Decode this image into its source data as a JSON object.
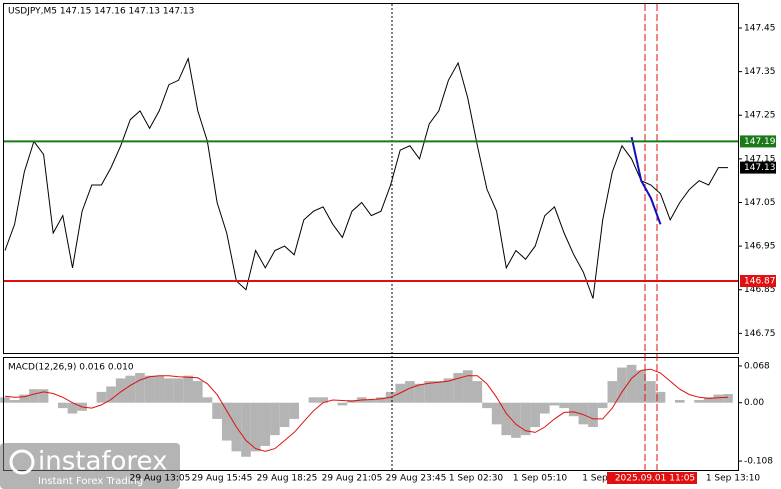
{
  "chart_data": [
    {
      "type": "line",
      "title": "USDJPY,M5  147.15 147.16 147.13 147.13",
      "series": [
        {
          "color": "#000000",
          "values": [
            146.94,
            147.0,
            147.12,
            147.19,
            147.16,
            146.98,
            147.02,
            146.9,
            147.03,
            147.09,
            147.09,
            147.13,
            147.18,
            147.24,
            147.26,
            147.22,
            147.26,
            147.32,
            147.33,
            147.38,
            147.26,
            147.19,
            147.05,
            146.98,
            146.87,
            146.85,
            146.94,
            146.9,
            146.94,
            146.95,
            146.93,
            147.01,
            147.03,
            147.04,
            147.0,
            146.97,
            147.03,
            147.05,
            147.02,
            147.03,
            147.09,
            147.17,
            147.18,
            147.15,
            147.23,
            147.26,
            147.33,
            147.37,
            147.29,
            147.18,
            147.08,
            147.03,
            146.9,
            146.94,
            146.92,
            146.95,
            147.02,
            147.04,
            146.98,
            146.93,
            146.89,
            146.83,
            147.01,
            147.12,
            147.18,
            147.15,
            147.1,
            147.09,
            147.07,
            147.01,
            147.05,
            147.08,
            147.1,
            147.09,
            147.13,
            147.13
          ]
        },
        {
          "color": "#1010c0",
          "values": [
            null,
            null,
            null,
            null,
            null,
            null,
            null,
            null,
            null,
            null,
            null,
            null,
            null,
            null,
            null,
            null,
            null,
            null,
            null,
            null,
            null,
            null,
            null,
            null,
            null,
            null,
            null,
            null,
            null,
            null,
            null,
            null,
            null,
            null,
            null,
            null,
            null,
            null,
            null,
            null,
            null,
            null,
            null,
            null,
            null,
            null,
            null,
            null,
            null,
            null,
            null,
            null,
            null,
            null,
            null,
            null,
            null,
            null,
            null,
            null,
            null,
            null,
            null,
            null,
            null,
            147.2,
            147.1,
            147.06,
            147.0,
            null,
            null,
            null,
            null,
            null,
            null,
            null
          ]
        }
      ],
      "ylim": [
        146.705,
        147.505
      ],
      "yticks": [
        147.45,
        147.35,
        147.25,
        147.15,
        147.05,
        146.95,
        146.85,
        146.75
      ],
      "levels": [
        {
          "value": 147.19,
          "color": "#1a7a1a"
        },
        {
          "value": 146.87,
          "color": "#e01010"
        }
      ],
      "last_price": 147.13,
      "xtick_labels": [
        "29 Aug 13:05",
        "29 Aug 15:45",
        "29 Aug 18:25",
        "29 Aug 21:05",
        "29 Aug 23:45",
        "1 Sep 02:30",
        "1 Sep 05:10",
        "1 Sep",
        "2025.09.01 11:05",
        "1 Sep 13:10"
      ]
    },
    {
      "type": "macd",
      "title": "MACD(12,26,9) 0.016 0.010",
      "histogram": {
        "color": "#b4b4b4",
        "values": [
          0.01,
          0.005,
          0.015,
          0.025,
          0.025,
          0,
          -0.01,
          -0.02,
          -0.015,
          0,
          0.02,
          0.03,
          0.045,
          0.05,
          0.055,
          0.05,
          0.05,
          0.045,
          0.045,
          0.05,
          0.04,
          0.01,
          -0.03,
          -0.07,
          -0.09,
          -0.1,
          -0.09,
          -0.08,
          -0.06,
          -0.045,
          -0.03,
          0,
          0.01,
          0.01,
          0,
          -0.005,
          0.005,
          0.01,
          0.005,
          0.01,
          0.02,
          0.035,
          0.04,
          0.035,
          0.04,
          0.04,
          0.045,
          0.055,
          0.06,
          0.04,
          -0.01,
          -0.04,
          -0.06,
          -0.065,
          -0.06,
          -0.045,
          -0.02,
          -0.005,
          -0.01,
          -0.025,
          -0.04,
          -0.045,
          -0.01,
          0.04,
          0.065,
          0.07,
          0.06,
          0.04,
          0.02,
          0,
          0.005,
          0,
          0.005,
          0.01,
          0.015,
          0.016
        ]
      },
      "signal": {
        "color": "#e01010",
        "values": [
          0.012,
          0.01,
          0.011,
          0.016,
          0.02,
          0.017,
          0.01,
          0.0,
          -0.008,
          -0.01,
          -0.004,
          0.006,
          0.02,
          0.032,
          0.042,
          0.048,
          0.05,
          0.05,
          0.048,
          0.047,
          0.046,
          0.035,
          0.015,
          -0.015,
          -0.045,
          -0.07,
          -0.085,
          -0.09,
          -0.085,
          -0.07,
          -0.055,
          -0.035,
          -0.015,
          0.0,
          0.005,
          0.004,
          0.003,
          0.005,
          0.006,
          0.007,
          0.01,
          0.018,
          0.027,
          0.033,
          0.036,
          0.038,
          0.04,
          0.045,
          0.05,
          0.05,
          0.035,
          0.01,
          -0.02,
          -0.04,
          -0.052,
          -0.055,
          -0.045,
          -0.03,
          -0.018,
          -0.017,
          -0.022,
          -0.03,
          -0.03,
          -0.01,
          0.02,
          0.045,
          0.06,
          0.062,
          0.055,
          0.04,
          0.025,
          0.015,
          0.01,
          0.008,
          0.009,
          0.01
        ]
      },
      "ylim": [
        -0.1245,
        0.0827
      ],
      "yticks": [
        0.068,
        {
          "value": 0,
          "label": "0.00"
        },
        -0.108
      ]
    }
  ],
  "watermark": {
    "brand": "instaforex",
    "tagline": "Instant Forex Trading"
  }
}
